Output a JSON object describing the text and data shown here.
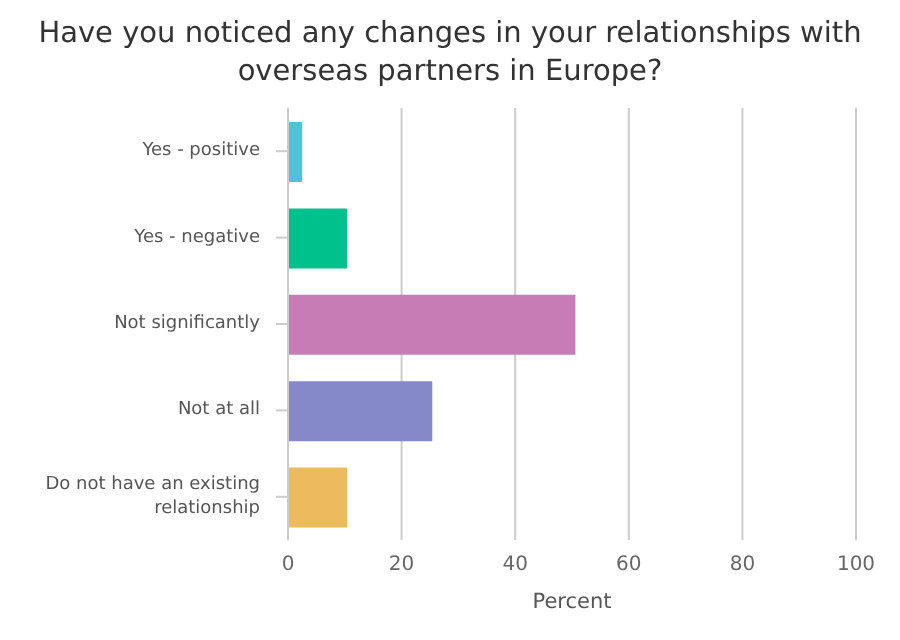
{
  "chart_data": {
    "type": "bar",
    "orientation": "horizontal",
    "title": "Have you noticed any changes in your relationships with overseas partners in Europe?",
    "xlabel": "Percent",
    "categories": [
      "Yes - positive",
      "Yes - negative",
      "Not significantly",
      "Not at all",
      "Do not have an existing relationship"
    ],
    "values": [
      2.5,
      10.4,
      50.6,
      25.4,
      10.4
    ],
    "colors": [
      "#4fc1d9",
      "#00c08b",
      "#c77cb5",
      "#8589c7",
      "#ecbb5e"
    ],
    "xlim": [
      0,
      100
    ],
    "xticks": [
      0,
      20,
      40,
      60,
      80,
      100
    ],
    "grid": "x"
  }
}
